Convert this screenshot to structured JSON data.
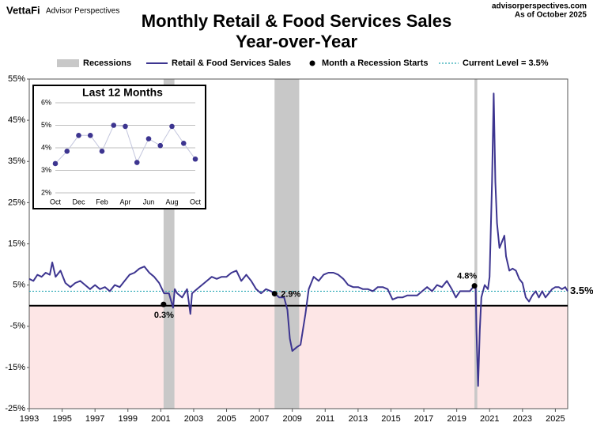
{
  "header": {
    "logo": "VettaFi",
    "brand": "Advisor Perspectives",
    "site": "advisorperspectives.com",
    "date": "As of October 2025"
  },
  "chart_data": [
    {
      "type": "line",
      "title": "Monthly Retail & Food Services Sales",
      "subtitle": "Year-over-Year",
      "x": [
        1993.0,
        1993.25,
        1993.5,
        1993.75,
        1994.0,
        1994.25,
        1994.4,
        1994.6,
        1994.9,
        1995.2,
        1995.5,
        1995.8,
        1996.1,
        1996.4,
        1996.7,
        1997.0,
        1997.3,
        1997.6,
        1997.9,
        1998.2,
        1998.5,
        1998.8,
        1999.1,
        1999.4,
        1999.7,
        2000.0,
        2000.3,
        2000.6,
        2000.9,
        2001.2,
        2001.5,
        2001.75,
        2001.85,
        2002.0,
        2002.3,
        2002.6,
        2002.8,
        2002.9,
        2003.2,
        2003.5,
        2003.8,
        2004.1,
        2004.4,
        2004.7,
        2005.0,
        2005.3,
        2005.6,
        2005.9,
        2006.2,
        2006.5,
        2006.8,
        2007.1,
        2007.4,
        2007.7,
        2007.95,
        2008.2,
        2008.5,
        2008.7,
        2008.85,
        2009.0,
        2009.3,
        2009.5,
        2009.8,
        2010.0,
        2010.3,
        2010.6,
        2010.9,
        2011.2,
        2011.5,
        2011.8,
        2012.1,
        2012.4,
        2012.7,
        2013.0,
        2013.3,
        2013.6,
        2013.9,
        2014.2,
        2014.5,
        2014.8,
        2015.1,
        2015.4,
        2015.7,
        2016.0,
        2016.3,
        2016.6,
        2016.9,
        2017.2,
        2017.5,
        2017.8,
        2018.1,
        2018.4,
        2018.7,
        2018.95,
        2019.2,
        2019.5,
        2019.8,
        2020.05,
        2020.15,
        2020.2,
        2020.3,
        2020.4,
        2020.5,
        2020.7,
        2020.9,
        2021.0,
        2021.15,
        2021.25,
        2021.35,
        2021.45,
        2021.6,
        2021.8,
        2021.9,
        2022.0,
        2022.2,
        2022.4,
        2022.6,
        2022.8,
        2023.0,
        2023.2,
        2023.4,
        2023.6,
        2023.8,
        2024.0,
        2024.2,
        2024.4,
        2024.6,
        2024.8,
        2025.0,
        2025.2,
        2025.4,
        2025.6,
        2025.75
      ],
      "series": [
        {
          "name": "Retail & Food Services Sales",
          "color": "#3d3590",
          "values": [
            6.5,
            6,
            7.5,
            7,
            8,
            7.5,
            10.5,
            7,
            8.5,
            5.5,
            4.5,
            5.5,
            6,
            5,
            4,
            5,
            4,
            4.5,
            3.5,
            5,
            4.5,
            6,
            7.5,
            8,
            9,
            9.5,
            8,
            7,
            5.5,
            3,
            3,
            -0.5,
            4,
            3,
            2,
            4,
            -2,
            3,
            4,
            5,
            6,
            7,
            6.5,
            7,
            7,
            8,
            8.5,
            6,
            7.5,
            6,
            4,
            3,
            4,
            3.5,
            2.9,
            2,
            2,
            -1,
            -8,
            -11,
            -10,
            -9.5,
            -2,
            4,
            7,
            6,
            7.5,
            8,
            8,
            7.5,
            6.5,
            5,
            4.5,
            4.5,
            4,
            4,
            3.5,
            4.5,
            4.5,
            4,
            1.5,
            2,
            2,
            2.5,
            2.5,
            2.5,
            3.5,
            4.5,
            3.5,
            5,
            4.5,
            6,
            4,
            2,
            3.5,
            3.5,
            3.5,
            4.8,
            4.5,
            -6,
            -19.5,
            -6,
            2,
            5,
            4,
            7,
            30,
            51.5,
            30,
            20,
            14,
            16,
            17,
            12,
            8.5,
            9,
            8.5,
            6.5,
            5.5,
            2,
            1,
            2.5,
            3.5,
            2,
            3.5,
            2,
            3,
            4,
            4.5,
            4.5,
            4,
            4.5,
            3.5
          ]
        }
      ],
      "recessions": {
        "name": "Recessions",
        "color": "#c8c8c8",
        "ranges": [
          [
            2001.17,
            2001.83
          ],
          [
            2007.92,
            2009.42
          ],
          [
            2020.08,
            2020.25
          ]
        ]
      },
      "recession_starts": {
        "name": "Month a Recession Starts",
        "x": [
          2001.17,
          2007.92,
          2020.08
        ],
        "values": [
          0.3,
          2.9,
          4.8
        ],
        "value_labels": [
          "0.3%",
          "2.9%",
          "4.8%"
        ]
      },
      "current_level": {
        "name": "Current Level = 3.5%",
        "value": 3.5,
        "label": "3.5%",
        "color": "#2aa9b5"
      },
      "negative_fill": "#fde6e6",
      "xlim": [
        1993,
        2025.75
      ],
      "xticks": [
        1993,
        1995,
        1997,
        1999,
        2001,
        2003,
        2005,
        2007,
        2009,
        2011,
        2013,
        2015,
        2017,
        2019,
        2021,
        2023,
        2025
      ],
      "ylim": [
        -25,
        55
      ],
      "yticks": [
        {
          "value": -25,
          "label": "-25%"
        },
        {
          "value": -15,
          "label": "-15%"
        },
        {
          "value": -5,
          "label": "-5%"
        },
        {
          "value": 5,
          "label": "5%"
        },
        {
          "value": 15,
          "label": "15%"
        },
        {
          "value": 25,
          "label": "25%"
        },
        {
          "value": 35,
          "label": "35%"
        },
        {
          "value": 45,
          "label": "45%"
        },
        {
          "value": 55,
          "label": "55%"
        }
      ]
    },
    {
      "type": "dotline",
      "title": "Last 12 Months",
      "categories": [
        "Oct",
        null,
        "Dec",
        null,
        "Feb",
        null,
        "Apr",
        null,
        "Jun",
        null,
        "Aug",
        null,
        "Oct"
      ],
      "values": [
        3.3,
        3.85,
        4.55,
        4.55,
        3.85,
        5.0,
        4.95,
        3.35,
        4.4,
        4.1,
        4.95,
        4.2,
        3.5
      ],
      "color": "#3d3590",
      "ylim": [
        2,
        6
      ],
      "yticks": [
        {
          "value": 2,
          "label": "2%"
        },
        {
          "value": 3,
          "label": "3%"
        },
        {
          "value": 4,
          "label": "4%"
        },
        {
          "value": 5,
          "label": "5%"
        },
        {
          "value": 6,
          "label": "6%"
        }
      ],
      "grid": true
    }
  ]
}
